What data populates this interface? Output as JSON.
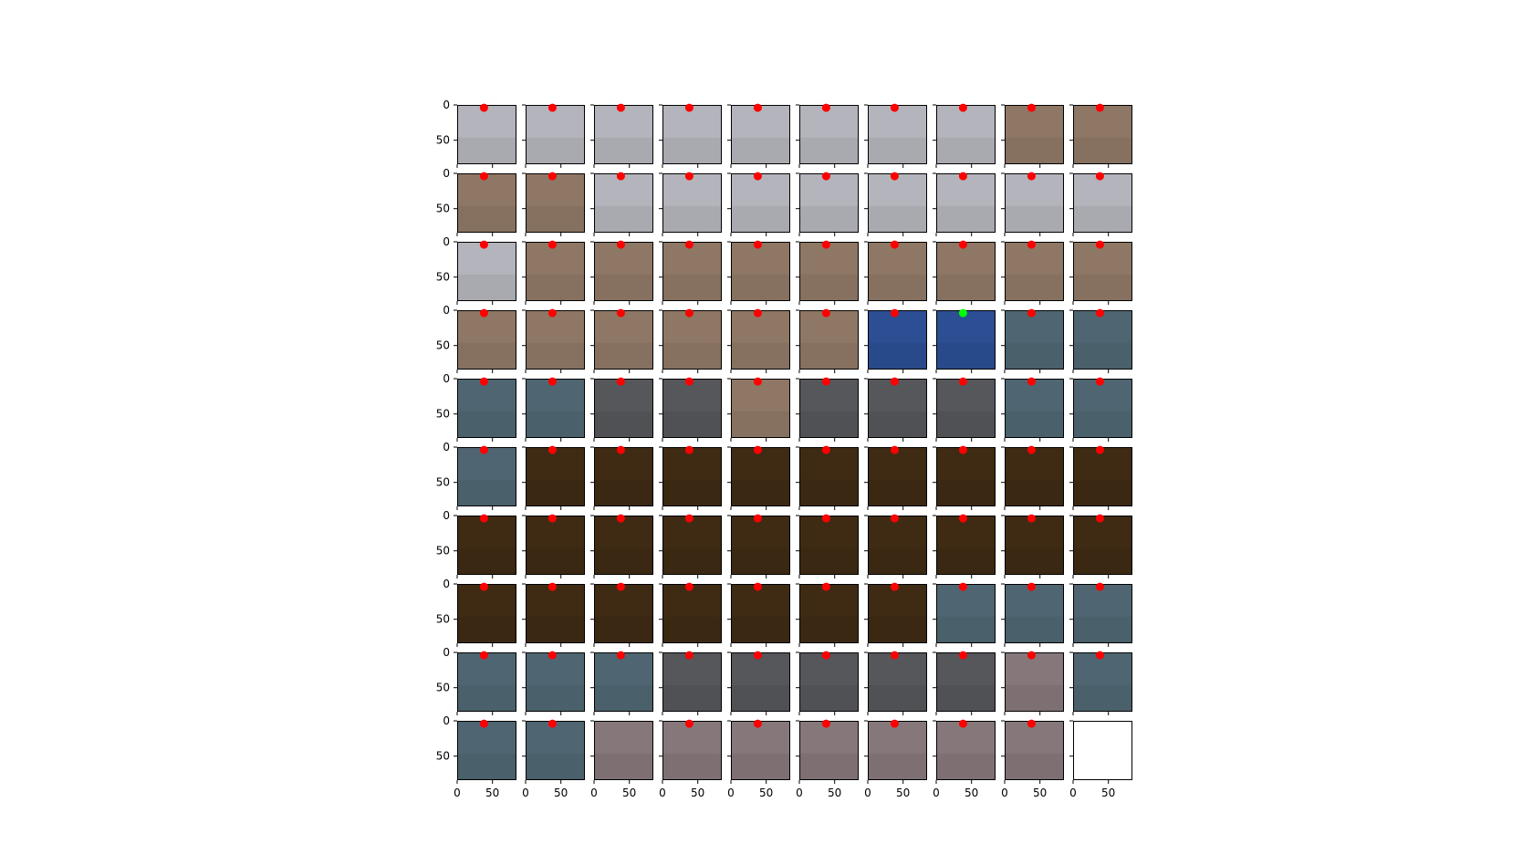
{
  "chart_data": {
    "type": "image-grid",
    "rows": 10,
    "cols": 10,
    "xlim": [
      0,
      84
    ],
    "ylim": [
      84,
      0
    ],
    "xticks": [
      0,
      50
    ],
    "yticks": [
      0,
      50
    ],
    "x_tick_labels": [
      "0",
      "50"
    ],
    "y_tick_labels": [
      "0",
      "50"
    ],
    "marker": {
      "x": 38,
      "y": 4
    },
    "marker_colors": {
      "red": "#ff0000",
      "green": "#00ff00"
    },
    "palette": {
      "grey": "#b4b4bc",
      "tan": "#8f7765",
      "brown": "#3f2b14",
      "steel": "#4f6672",
      "slate": "#55575b",
      "mauve": "#86787a",
      "blue": "#2c4f93",
      "white": "#ffffff"
    },
    "tiles": [
      [
        "grey",
        "grey",
        "grey",
        "grey",
        "grey",
        "grey",
        "grey",
        "grey",
        "tan",
        "tan"
      ],
      [
        "tan",
        "tan",
        "grey",
        "grey",
        "grey",
        "grey",
        "grey",
        "grey",
        "grey",
        "grey"
      ],
      [
        "grey",
        "tan",
        "tan",
        "tan",
        "tan",
        "tan",
        "tan",
        "tan",
        "tan",
        "tan"
      ],
      [
        "tan",
        "tan",
        "tan",
        "tan",
        "tan",
        "tan",
        "blue",
        "blue",
        "steel",
        "steel"
      ],
      [
        "steel",
        "steel",
        "slate",
        "slate",
        "tan",
        "slate",
        "slate",
        "slate",
        "steel",
        "steel"
      ],
      [
        "steel",
        "brown",
        "brown",
        "brown",
        "brown",
        "brown",
        "brown",
        "brown",
        "brown",
        "brown"
      ],
      [
        "brown",
        "brown",
        "brown",
        "brown",
        "brown",
        "brown",
        "brown",
        "brown",
        "brown",
        "brown"
      ],
      [
        "brown",
        "brown",
        "brown",
        "brown",
        "brown",
        "brown",
        "brown",
        "steel",
        "steel",
        "steel"
      ],
      [
        "steel",
        "steel",
        "steel",
        "slate",
        "slate",
        "slate",
        "slate",
        "slate",
        "mauve",
        "steel"
      ],
      [
        "steel",
        "steel",
        "mauve",
        "mauve",
        "mauve",
        "mauve",
        "mauve",
        "mauve",
        "mauve",
        "white"
      ]
    ],
    "markers": [
      [
        "red",
        "red",
        "red",
        "red",
        "red",
        "red",
        "red",
        "red",
        "red",
        "red"
      ],
      [
        "red",
        "red",
        "red",
        "red",
        "red",
        "red",
        "red",
        "red",
        "red",
        "red"
      ],
      [
        "red",
        "red",
        "red",
        "red",
        "red",
        "red",
        "red",
        "red",
        "red",
        "red"
      ],
      [
        "red",
        "red",
        "red",
        "red",
        "red",
        "red",
        "red",
        "green",
        "red",
        "red"
      ],
      [
        "red",
        "red",
        "red",
        "red",
        "red",
        "red",
        "red",
        "red",
        "red",
        "red"
      ],
      [
        "red",
        "red",
        "red",
        "red",
        "red",
        "red",
        "red",
        "red",
        "red",
        "red"
      ],
      [
        "red",
        "red",
        "red",
        "red",
        "red",
        "red",
        "red",
        "red",
        "red",
        "red"
      ],
      [
        "red",
        "red",
        "red",
        "red",
        "red",
        "red",
        "red",
        "red",
        "red",
        "red"
      ],
      [
        "red",
        "red",
        "red",
        "red",
        "red",
        "red",
        "red",
        "red",
        "red",
        "red"
      ],
      [
        "red",
        "red",
        "",
        "red",
        "red",
        "red",
        "red",
        "red",
        "red",
        ""
      ]
    ]
  }
}
